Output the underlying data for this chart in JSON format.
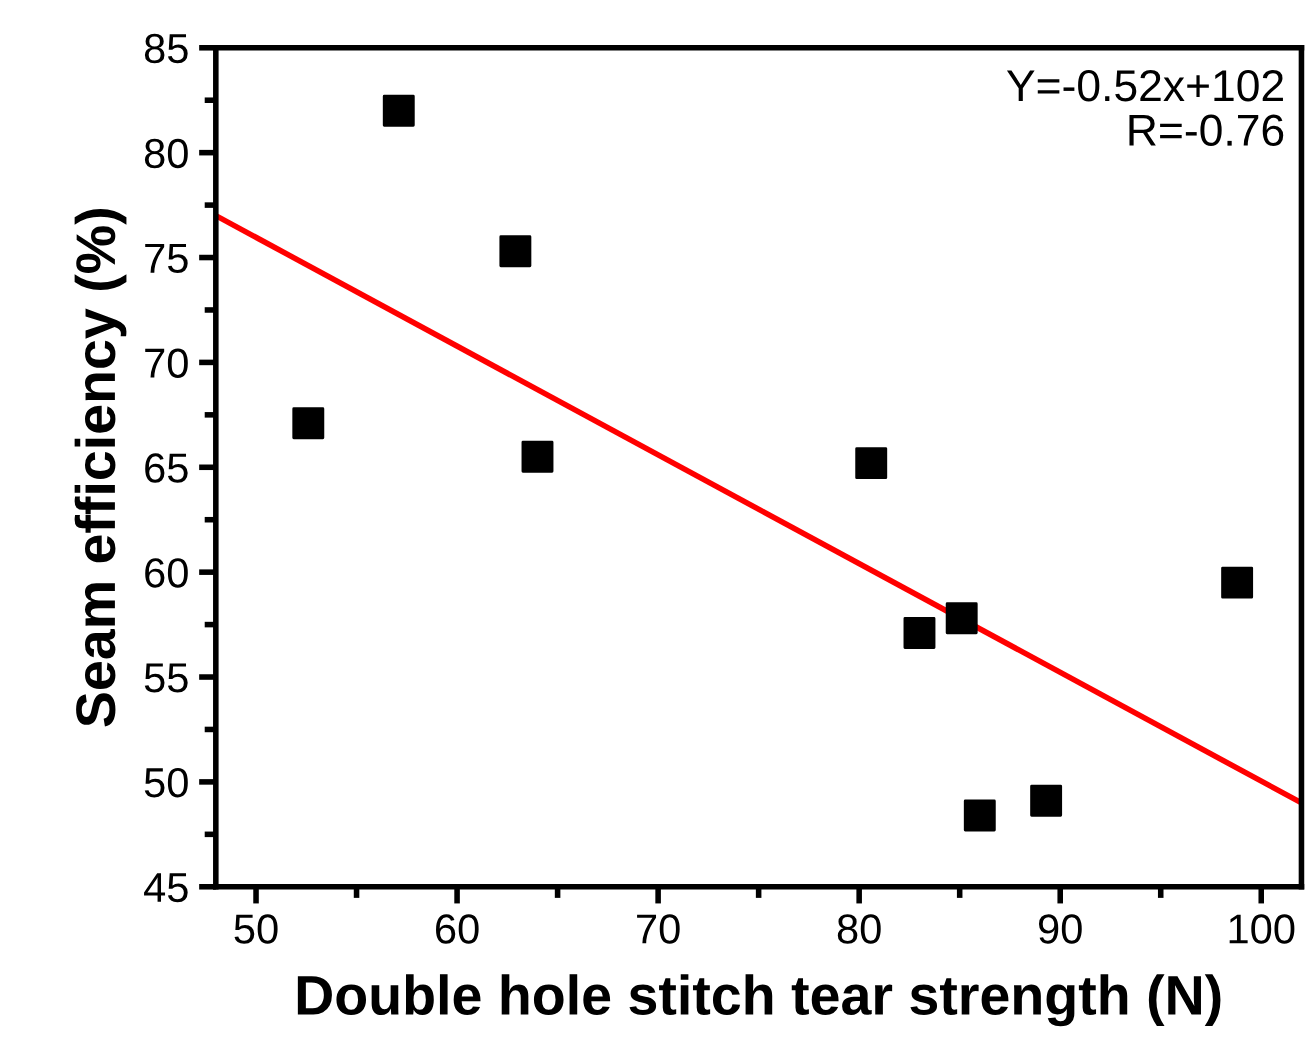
{
  "chart_data": {
    "type": "scatter",
    "xlabel": "Double hole stitch tear strength (N)",
    "ylabel": "Seam efficiency (%)",
    "annotations": [
      "Y=-0.52x+102\nR=-0.76"
    ],
    "xlim": [
      48,
      102
    ],
    "ylim": [
      45,
      85
    ],
    "xticks": [
      50,
      60,
      70,
      80,
      90,
      100
    ],
    "yticks": [
      45,
      50,
      55,
      60,
      65,
      70,
      75,
      80,
      85
    ],
    "grid": false,
    "series": [
      {
        "marker": "square",
        "color": "#000000",
        "x": [
          52.6,
          57.1,
          62.9,
          64.0,
          80.6,
          83.0,
          85.1,
          86.0,
          89.3,
          98.8
        ],
        "values": [
          67.1,
          82.0,
          75.3,
          65.5,
          65.2,
          57.1,
          57.8,
          48.4,
          49.1,
          59.5
        ]
      },
      {
        "type": "line",
        "marker": "none",
        "color": "#ff0000",
        "x": [
          48,
          102
        ],
        "values": [
          77.0,
          49.0
        ]
      }
    ]
  }
}
